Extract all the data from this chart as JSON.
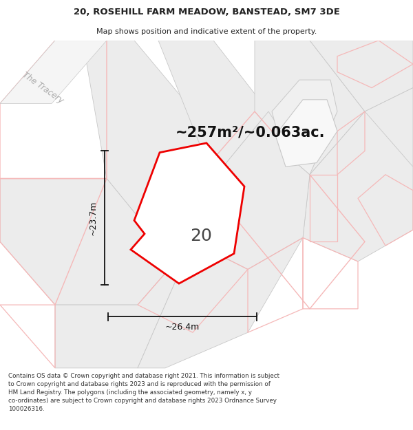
{
  "title_line1": "20, ROSEHILL FARM MEADOW, BANSTEAD, SM7 3DE",
  "title_line2": "Map shows position and indicative extent of the property.",
  "footer_text": "Contains OS data © Crown copyright and database right 2021. This information is subject to Crown copyright and database rights 2023 and is reproduced with the permission of HM Land Registry. The polygons (including the associated geometry, namely x, y co-ordinates) are subject to Crown copyright and database rights 2023 Ordnance Survey 100026316.",
  "area_text": "~257m²/~0.063ac.",
  "label_20": "20",
  "dim_width": "~26.4m",
  "dim_height": "~23.7m",
  "bg_color": "#ffffff",
  "map_bg": "#ffffff",
  "plot_outline_color": "#ee0000",
  "plot_fill_color": "#ffffff",
  "gray_fill": "#e0e0e0",
  "light_gray_fill": "#ececec",
  "pink_outline": "#f5b8b8",
  "gray_outline": "#c8c8c8",
  "road_label": "The Tracery",
  "title_color": "#222222",
  "footer_color": "#333333",
  "dim_color": "#111111",
  "road_label_color": "#aaaaaa"
}
